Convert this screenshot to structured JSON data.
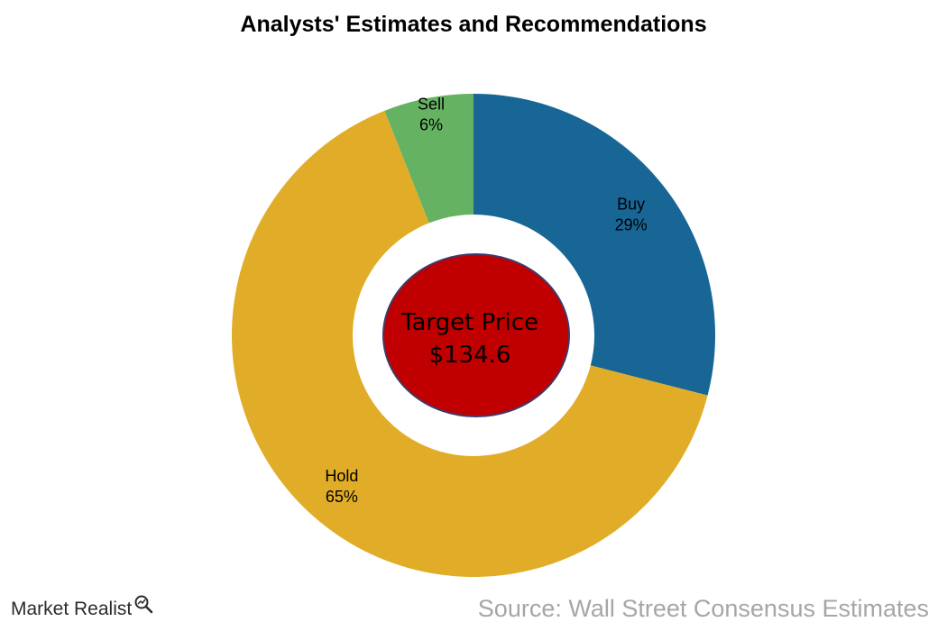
{
  "chart_data": {
    "type": "pie",
    "style": "donut",
    "title": "Analysts' Estimates and Recommendations",
    "categories": [
      "Buy",
      "Hold",
      "Sell"
    ],
    "values": [
      29,
      65,
      6
    ],
    "value_labels": [
      "29%",
      "65%",
      "6%"
    ],
    "colors": [
      "#176696",
      "#e1ad28",
      "#65b362"
    ],
    "center": {
      "label": "Target Price",
      "value": "$134.6",
      "fill": "#c00000",
      "stroke": "#3f3a6b"
    },
    "legend": "none"
  },
  "footer": {
    "brand": "Market Realist",
    "brand_icon": "magnifier-chart-icon",
    "source": "Source: Wall Street Consensus Estimates"
  }
}
